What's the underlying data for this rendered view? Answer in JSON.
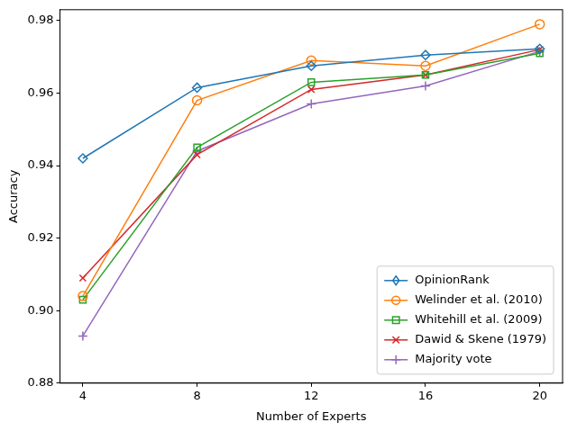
{
  "chart_data": {
    "type": "line",
    "x_label": "Number of Experts",
    "y_label": "Accuracy",
    "x": [
      4,
      8,
      12,
      16,
      20
    ],
    "series": [
      {
        "name": "OpinionRank",
        "color": "#1f77b4",
        "marker": "diamond",
        "values": [
          0.942,
          0.9615,
          0.9675,
          0.9705,
          0.9722
        ]
      },
      {
        "name": "Welinder et al. (2010)",
        "color": "#ff7f0e",
        "marker": "circle",
        "values": [
          0.904,
          0.958,
          0.969,
          0.9675,
          0.979
        ]
      },
      {
        "name": "Whitehill et al. (2009)",
        "color": "#2ca02c",
        "marker": "square",
        "values": [
          0.903,
          0.945,
          0.963,
          0.965,
          0.971
        ]
      },
      {
        "name": "Dawid & Skene (1979)",
        "color": "#d62728",
        "marker": "x",
        "values": [
          0.909,
          0.943,
          0.961,
          0.965,
          0.972
        ]
      },
      {
        "name": "Majority vote",
        "color": "#9467bd",
        "marker": "plus",
        "values": [
          0.893,
          0.944,
          0.957,
          0.962,
          0.9715
        ]
      }
    ],
    "xlim": [
      3.2,
      20.8
    ],
    "xticks": [
      4,
      8,
      12,
      16,
      20
    ],
    "ylim": [
      0.88,
      0.983
    ],
    "yticks": [
      0.88,
      {
        "value": 0.9,
        "label": "0.90"
      },
      0.92,
      0.94,
      0.96,
      0.98
    ],
    "grid": false,
    "legend": "lower right"
  }
}
